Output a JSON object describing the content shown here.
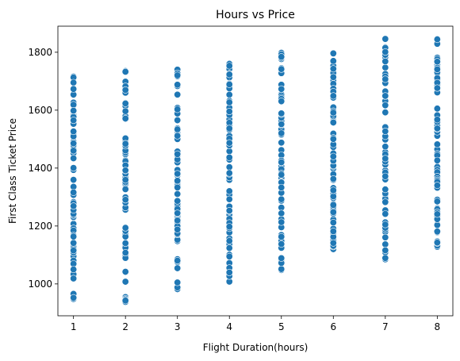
{
  "chart_data": {
    "type": "scatter",
    "title": "Hours vs Price",
    "xlabel": "Flight Duration(hours)",
    "ylabel": "First Class Ticket Price",
    "xlim": [
      0.7,
      8.3
    ],
    "ylim": [
      890,
      1890
    ],
    "xticks": [
      1,
      2,
      3,
      4,
      5,
      6,
      7,
      8
    ],
    "yticks": [
      1000,
      1200,
      1400,
      1600,
      1800
    ],
    "grid": false,
    "legend": "none",
    "marker_color": "#1f77b4",
    "series": [
      {
        "groups": [
          {
            "x": 1,
            "y_min": 948,
            "y_max": 1716
          },
          {
            "x": 2,
            "y_min": 938,
            "y_max": 1735
          },
          {
            "x": 3,
            "y_min": 982,
            "y_max": 1740
          },
          {
            "x": 4,
            "y_min": 1008,
            "y_max": 1760
          },
          {
            "x": 5,
            "y_min": 1048,
            "y_max": 1798
          },
          {
            "x": 6,
            "y_min": 1120,
            "y_max": 1796
          },
          {
            "x": 7,
            "y_min": 1085,
            "y_max": 1846
          },
          {
            "x": 8,
            "y_min": 1128,
            "y_max": 1846
          }
        ]
      }
    ]
  }
}
